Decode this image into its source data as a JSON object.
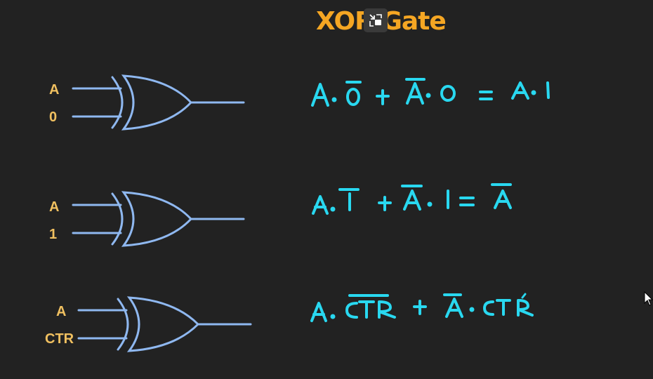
{
  "title": "XOR Gate",
  "colors": {
    "background": "#222222",
    "title": "#f5a623",
    "gate": "#8fb8f0",
    "label": "#f0c060",
    "handwriting": "#29d8f0"
  },
  "gates": [
    {
      "input_a": "A",
      "input_b": "0",
      "equation": "A·0̄ + Ā·0 = A·1"
    },
    {
      "input_a": "A",
      "input_b": "1",
      "equation": "A·1̄ + Ā·1 = Ā"
    },
    {
      "input_a": "A",
      "input_b": "CTR",
      "equation": "A·C̄T̄R̄ + Ā·CTR"
    }
  ],
  "icons": {
    "restore": "restore-window-icon",
    "cursor": "mouse-pointer-icon"
  }
}
